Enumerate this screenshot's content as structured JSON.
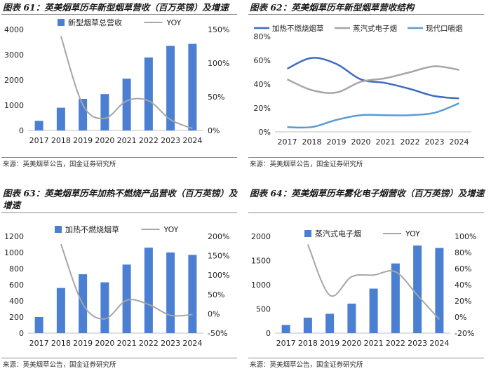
{
  "chart_data": [
    {
      "type": "bar",
      "title": "图表 61：英美烟草历年新型烟草营收（百万英镑）及增速",
      "source": "来源：英美烟草公告，国金证券研究所",
      "categories": [
        "2017",
        "2018",
        "2019",
        "2020",
        "2021",
        "2022",
        "2023",
        "2024"
      ],
      "series": [
        {
          "name": "新型烟草总营收",
          "kind": "bar",
          "axis": "left",
          "color": "#4a7fd1",
          "values": [
            380,
            900,
            1250,
            1440,
            2050,
            2890,
            3350,
            3430
          ]
        },
        {
          "name": "YOY",
          "kind": "line",
          "axis": "right",
          "color": "#a6a6a6",
          "values": [
            null,
            140,
            38,
            18,
            44,
            44,
            16,
            3
          ]
        }
      ],
      "ylim": [
        0,
        4000
      ],
      "y_ticks": [
        "0",
        "1000",
        "2000",
        "3000",
        "4000"
      ],
      "y2lim": [
        0,
        150
      ],
      "y2_ticks": [
        "0%",
        "50%",
        "100%",
        "150%"
      ]
    },
    {
      "type": "line",
      "title": "图表 62：英美烟草历年新型烟草营收结构",
      "source": "来源：英美烟草公告，国金证券研究所",
      "categories": [
        "2017",
        "2018",
        "2019",
        "2020",
        "2021",
        "2022",
        "2023",
        "2024"
      ],
      "series": [
        {
          "name": "加热不燃烧烟草",
          "color": "#3d6cc0",
          "values": [
            53,
            62,
            57,
            44,
            41,
            36,
            30,
            28
          ]
        },
        {
          "name": "蒸汽式电子烟",
          "color": "#a6a6a6",
          "values": [
            44,
            35,
            33,
            42,
            45,
            50,
            55,
            52
          ]
        },
        {
          "name": "现代口嚼烟",
          "color": "#5b9bd5",
          "values": [
            4,
            4,
            10,
            14,
            14,
            14,
            16,
            24
          ]
        }
      ],
      "ylim": [
        0,
        80
      ],
      "y_ticks": [
        "0%",
        "20%",
        "40%",
        "60%",
        "80%"
      ]
    },
    {
      "type": "bar",
      "title": "图表 63：英美烟草历年加热不燃烧产品营收（百万英镑）及增速",
      "source": "来源：英美烟草公告，国金证券研究所",
      "categories": [
        "2017",
        "2018",
        "2019",
        "2020",
        "2021",
        "2022",
        "2023",
        "2024"
      ],
      "series": [
        {
          "name": "加热不燃烧烟草",
          "kind": "bar",
          "axis": "left",
          "color": "#4a7fd1",
          "values": [
            200,
            560,
            730,
            630,
            850,
            1060,
            1000,
            970
          ]
        },
        {
          "name": "YOY",
          "kind": "line",
          "axis": "right",
          "color": "#a6a6a6",
          "values": [
            null,
            180,
            25,
            -13,
            35,
            24,
            -4,
            -2
          ]
        }
      ],
      "ylim": [
        0,
        1200
      ],
      "y_ticks": [
        "0",
        "200",
        "400",
        "600",
        "800",
        "1000",
        "1200"
      ],
      "y2lim": [
        -50,
        200
      ],
      "y2_ticks": [
        "-50%",
        "0%",
        "50%",
        "100%",
        "150%",
        "200%"
      ]
    },
    {
      "type": "bar",
      "title": "图表 64：英美烟草历年雾化电子烟营收（百万英镑）及增速",
      "source": "来源：英美烟草公告，国金证券研究所",
      "categories": [
        "2017",
        "2018",
        "2019",
        "2020",
        "2021",
        "2022",
        "2023",
        "2024"
      ],
      "series": [
        {
          "name": "蒸汽式电子烟",
          "kind": "bar",
          "axis": "left",
          "color": "#4a7fd1",
          "values": [
            170,
            320,
            400,
            610,
            920,
            1440,
            1810,
            1760
          ]
        },
        {
          "name": "YOY",
          "kind": "line",
          "axis": "right",
          "color": "#a6a6a6",
          "values": [
            null,
            90,
            27,
            50,
            52,
            56,
            27,
            -3
          ]
        }
      ],
      "ylim": [
        0,
        2000
      ],
      "y_ticks": [
        "0",
        "500",
        "1000",
        "1500",
        "2000"
      ],
      "y2lim": [
        -20,
        100
      ],
      "y2_ticks": [
        "-20%",
        "0%",
        "20%",
        "40%",
        "60%",
        "80%",
        "100%"
      ]
    }
  ]
}
